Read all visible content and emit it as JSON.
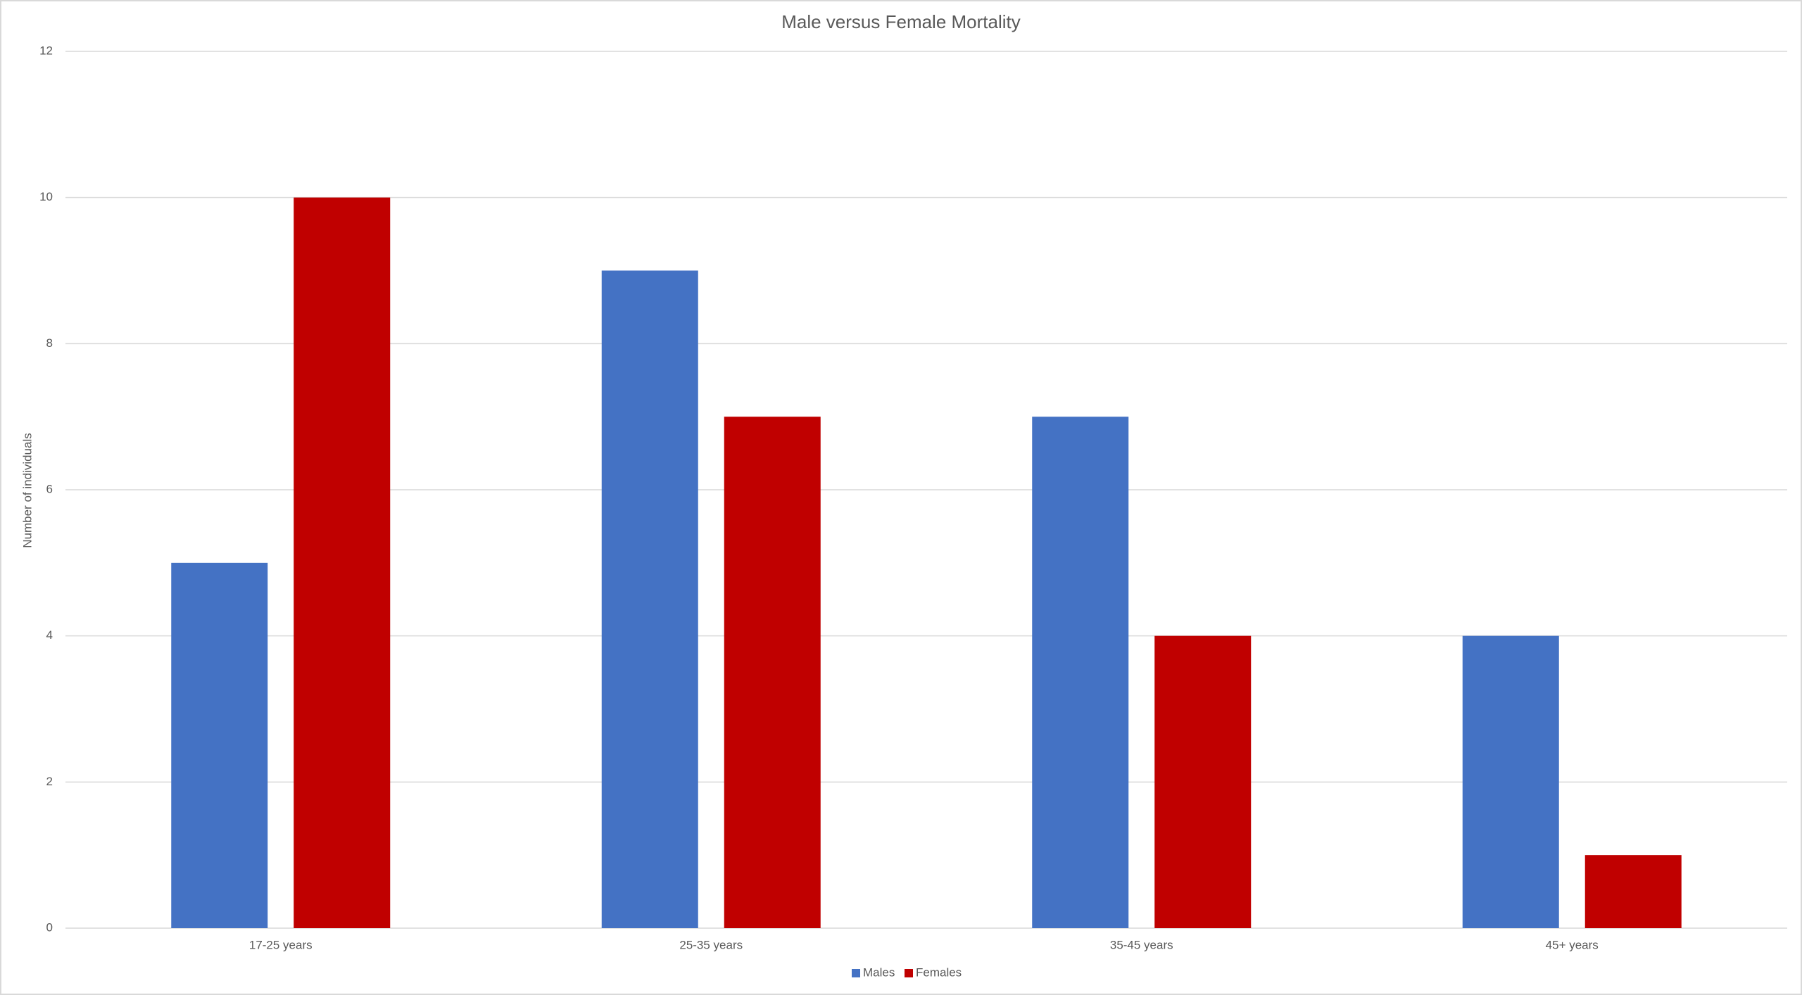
{
  "chart_data": {
    "type": "bar",
    "title": "Male versus Female Mortality",
    "y_label": "Number of individuals",
    "categories": [
      "17-25 years",
      "25-35 years",
      "35-45 years",
      "45+ years"
    ],
    "series": [
      {
        "name": "Males",
        "color": "#4472c4",
        "values": [
          5,
          9,
          7,
          4
        ]
      },
      {
        "name": "Females",
        "color": "#c00000",
        "values": [
          10,
          7,
          4,
          1
        ]
      }
    ],
    "ylim": [
      0,
      12
    ],
    "yticks": [
      0,
      2,
      4,
      6,
      8,
      10,
      12
    ],
    "grid": true,
    "legend": "bottom"
  }
}
